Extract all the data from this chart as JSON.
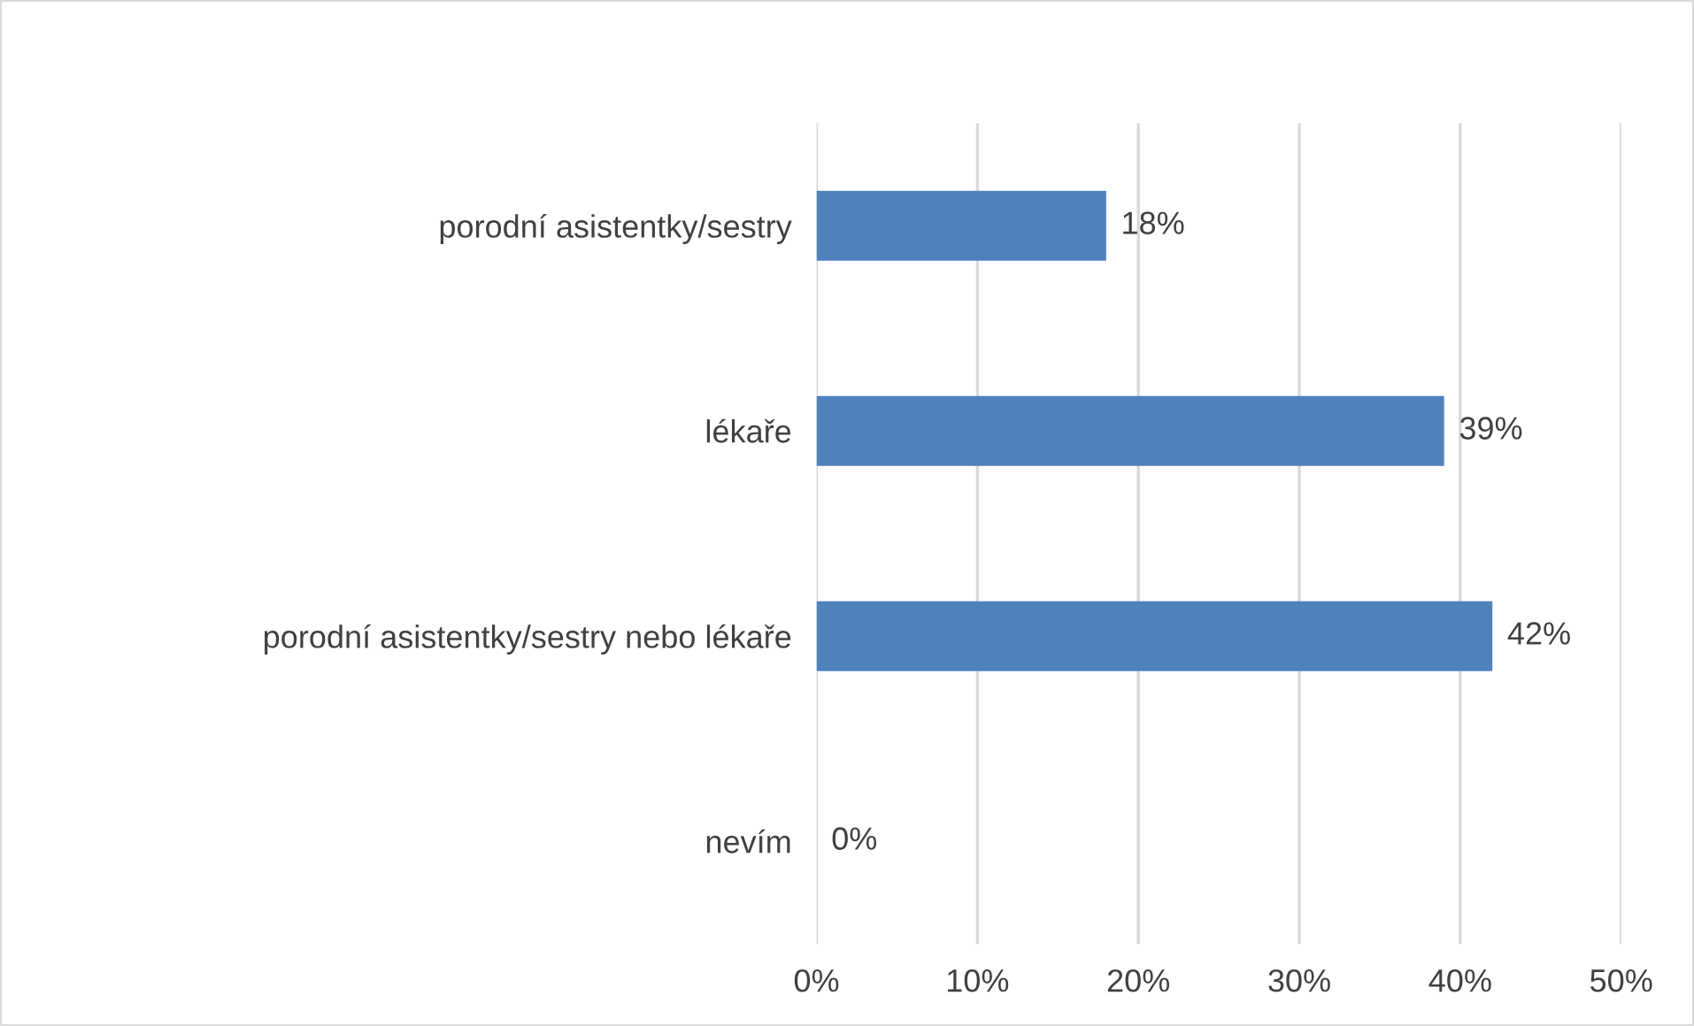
{
  "chart_data": {
    "type": "bar",
    "orientation": "horizontal",
    "categories": [
      "porodní asistentky/sestry",
      "lékaře",
      "porodní asistentky/sestry nebo lékaře",
      "nevím"
    ],
    "values": [
      18,
      39,
      42,
      0
    ],
    "value_labels": [
      "18%",
      "39%",
      "42%",
      "0%"
    ],
    "color": "#4f81bd",
    "xlim": [
      0,
      50
    ],
    "xticks": [
      {
        "value": 0,
        "label": "0%"
      },
      {
        "value": 10,
        "label": "10%"
      },
      {
        "value": 20,
        "label": "20%"
      },
      {
        "value": 30,
        "label": "30%"
      },
      {
        "value": 40,
        "label": "40%"
      },
      {
        "value": 50,
        "label": "50%"
      }
    ],
    "grid": "x"
  }
}
